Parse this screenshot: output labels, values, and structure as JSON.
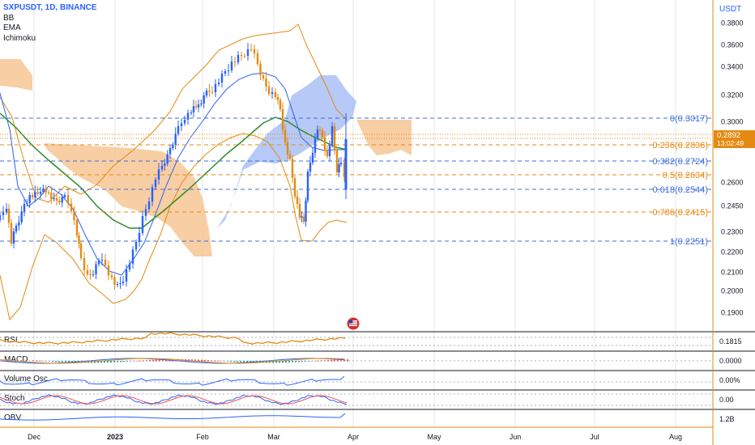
{
  "header": {
    "symbol": "SXPUSDT, 1D, BINANCE",
    "indicators": [
      "BB",
      "EMA",
      "Ichimoku"
    ]
  },
  "price_axis": {
    "unit": "USDT",
    "ticks": [
      "0.3800",
      "0.3600",
      "0.3400",
      "0.3200",
      "0.3000",
      "0.2600",
      "0.2450",
      "0.2300",
      "0.2200",
      "0.2100",
      "0.2000",
      "0.1900"
    ],
    "last_price": "0.2892",
    "countdown": "13:02:49"
  },
  "time_axis": {
    "labels": [
      "Dec",
      "2023",
      "Feb",
      "Mar",
      "Apr",
      "May",
      "Jun",
      "Jul",
      "Aug"
    ]
  },
  "fib_levels": [
    {
      "label": "0(0.3017)",
      "color": "#3f6fd8"
    },
    {
      "label": "0.236(0.2836)",
      "color": "#e48a12"
    },
    {
      "label": "0.382(0.2724)",
      "color": "#3f6fd8"
    },
    {
      "label": "0.5(0.2634)",
      "color": "#e48a12"
    },
    {
      "label": "0.618(0.2544)",
      "color": "#3f6fd8"
    },
    {
      "label": "0.786(0.2415)",
      "color": "#e48a12"
    },
    {
      "label": "1(0.2251)",
      "color": "#3f6fd8"
    }
  ],
  "panes": [
    {
      "name": "RSI",
      "scale": [
        "0.1815"
      ]
    },
    {
      "name": "MACD",
      "scale": [
        "0.0000"
      ]
    },
    {
      "name": "Volume Osc",
      "scale": [
        "0.00%"
      ]
    },
    {
      "name": "Stoch",
      "scale": [
        "0.00"
      ]
    },
    {
      "name": "OBV",
      "scale": [
        "1.2B"
      ]
    }
  ],
  "colors": {
    "up": "#2962ff",
    "down": "#e48a12",
    "ema_green": "#2e8b2e",
    "bb_orange": "#e48a12",
    "bb_blue": "#2962ff",
    "cloud_orange": "#f7c594",
    "cloud_blue": "#a9bff6",
    "price_tag": "#e48a12",
    "grid": "#e6e6e6"
  },
  "chart_data": {
    "type": "candlestick",
    "title": "SXPUSDT, 1D, BINANCE",
    "price_range": [
      0.18,
      0.39
    ],
    "fib_retracement": [
      {
        "ratio": 0,
        "price": 0.3017
      },
      {
        "ratio": 0.236,
        "price": 0.2836
      },
      {
        "ratio": 0.382,
        "price": 0.2724
      },
      {
        "ratio": 0.5,
        "price": 0.2634
      },
      {
        "ratio": 0.618,
        "price": 0.2544
      },
      {
        "ratio": 0.786,
        "price": 0.2415
      },
      {
        "ratio": 1,
        "price": 0.2251
      }
    ],
    "approx_closes": [
      0.238,
      0.25,
      0.224,
      0.23,
      0.256,
      0.249,
      0.26,
      0.252,
      0.235,
      0.208,
      0.218,
      0.202,
      0.2,
      0.232,
      0.248,
      0.27,
      0.29,
      0.32,
      0.335,
      0.35,
      0.345,
      0.32,
      0.285,
      0.296,
      0.245,
      0.288,
      0.27,
      0.289
    ],
    "last_price": 0.2892
  }
}
